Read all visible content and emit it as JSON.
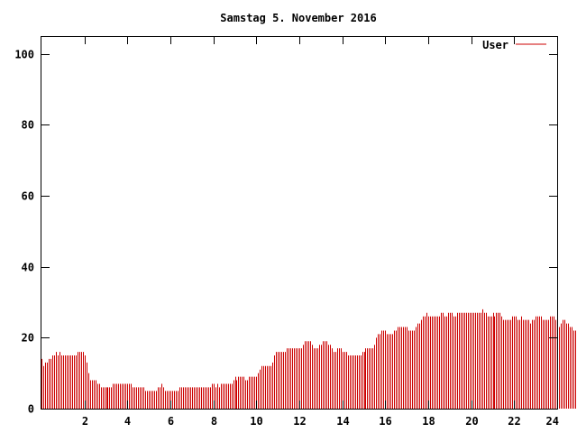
{
  "chart_data": {
    "type": "bar",
    "title": "Samstag 5. November 2016",
    "xlabel": "",
    "ylabel": "",
    "xlim": [
      0,
      24
    ],
    "ylim": [
      0,
      105
    ],
    "x_ticks": [
      "2",
      "4",
      "6",
      "8",
      "10",
      "12",
      "14",
      "16",
      "18",
      "20",
      "22",
      "24"
    ],
    "y_ticks": [
      "0",
      "20",
      "40",
      "60",
      "80",
      "100"
    ],
    "grid": false,
    "legend_position": "top-right",
    "colors": {
      "series": "#cc0000",
      "axes": "#000000"
    },
    "series": [
      {
        "name": "User",
        "points_per_hour": 12,
        "values": [
          14,
          12,
          13,
          13,
          14,
          14,
          15,
          15,
          16,
          15,
          16,
          15,
          15,
          15,
          15,
          15,
          15,
          15,
          15,
          15,
          16,
          16,
          16,
          16,
          15,
          13,
          10,
          8,
          8,
          8,
          8,
          7,
          7,
          6,
          6,
          6,
          6,
          6,
          6,
          6,
          7,
          7,
          7,
          7,
          7,
          7,
          7,
          7,
          7,
          7,
          7,
          6,
          6,
          6,
          6,
          6,
          6,
          6,
          5,
          5,
          5,
          5,
          5,
          5,
          5,
          6,
          6,
          7,
          6,
          5,
          5,
          5,
          5,
          5,
          5,
          5,
          5,
          6,
          6,
          6,
          6,
          6,
          6,
          6,
          6,
          6,
          6,
          6,
          6,
          6,
          6,
          6,
          6,
          6,
          6,
          7,
          7,
          6,
          7,
          6,
          7,
          7,
          7,
          7,
          7,
          7,
          7,
          8,
          9,
          8,
          9,
          9,
          9,
          9,
          8,
          8,
          9,
          9,
          9,
          9,
          9,
          10,
          11,
          12,
          12,
          12,
          12,
          12,
          12,
          13,
          15,
          16,
          16,
          16,
          16,
          16,
          16,
          17,
          17,
          17,
          17,
          17,
          17,
          17,
          17,
          17,
          18,
          19,
          19,
          19,
          19,
          18,
          17,
          17,
          17,
          18,
          18,
          19,
          19,
          19,
          18,
          18,
          17,
          16,
          16,
          17,
          17,
          17,
          16,
          16,
          16,
          15,
          15,
          15,
          15,
          15,
          15,
          15,
          15,
          16,
          16,
          17,
          17,
          17,
          17,
          17,
          18,
          20,
          21,
          21,
          22,
          22,
          22,
          21,
          21,
          21,
          21,
          22,
          22,
          23,
          23,
          23,
          23,
          23,
          23,
          22,
          22,
          22,
          22,
          23,
          24,
          24,
          25,
          26,
          26,
          27,
          26,
          26,
          26,
          26,
          26,
          26,
          26,
          27,
          27,
          26,
          26,
          27,
          27,
          27,
          26,
          26,
          27,
          27,
          27,
          27,
          27,
          27,
          27,
          27,
          27,
          27,
          27,
          27,
          27,
          27,
          28,
          27,
          27,
          26,
          26,
          26,
          27,
          26,
          27,
          27,
          27,
          26,
          25,
          25,
          25,
          25,
          25,
          26,
          26,
          26,
          25,
          25,
          26,
          25,
          25,
          25,
          25,
          24,
          25,
          25,
          26,
          26,
          26,
          26,
          25,
          25,
          25,
          25,
          26,
          26,
          26,
          25,
          24,
          23,
          24,
          25,
          25,
          24,
          24,
          23,
          23,
          22,
          22,
          22,
          22,
          23,
          22
        ]
      }
    ]
  }
}
